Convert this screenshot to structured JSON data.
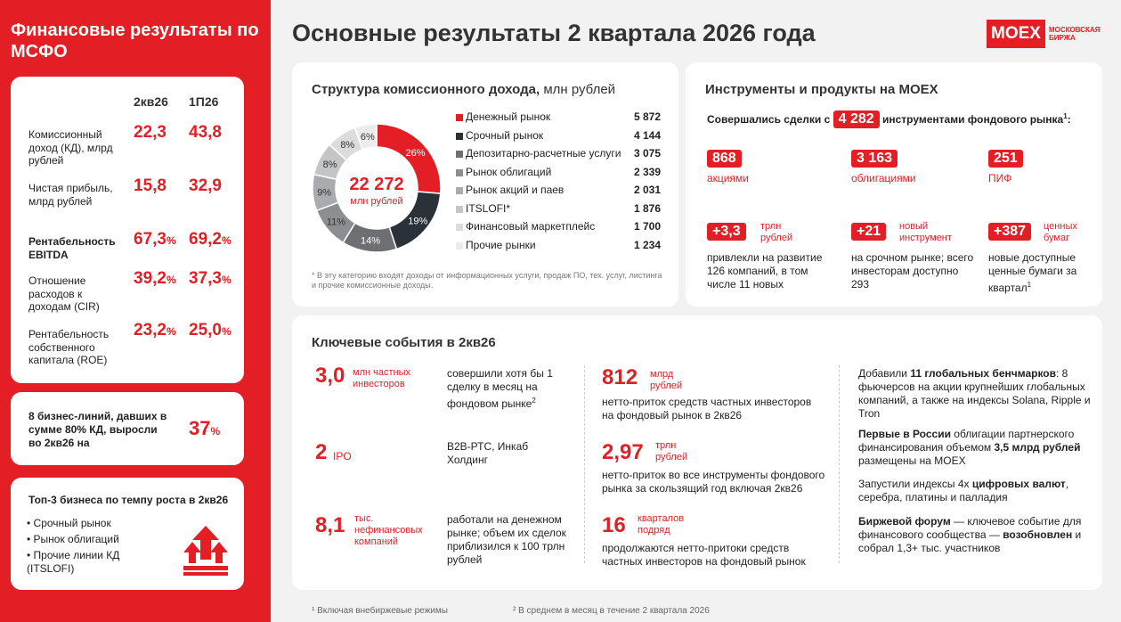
{
  "sidebar": {
    "title": "Финансовые результаты по МСФО",
    "col_q": "2кв26",
    "col_h": "1П26",
    "rows": [
      {
        "label": "Комиссионный доход (КД), млрд рублей",
        "q": "22,3",
        "h": "43,8",
        "unit": ""
      },
      {
        "label": "Чистая прибыль, млрд рублей",
        "q": "15,8",
        "h": "32,9",
        "unit": ""
      },
      {
        "label": "Рентабельность EBITDA",
        "q": "67,3",
        "h": "69,2",
        "unit": "%"
      },
      {
        "label": "Отношение расходов к доходам (CIR)",
        "q": "39,2",
        "h": "37,3",
        "unit": "%"
      },
      {
        "label": "Рентабельность собственного капитала (ROE)",
        "q": "23,2",
        "h": "25,0",
        "unit": "%"
      }
    ],
    "business_lines": {
      "text": "8 бизнес-линий, давших в сумме 80% КД, выросли во 2кв26 на",
      "value": "37",
      "unit": "%"
    },
    "top3": {
      "title": "Топ-3 бизнеса по темпу роста в 2кв26",
      "items": [
        "Срочный рынок",
        "Рынок облигаций",
        "Прочие линии КД (ITSLOFI)"
      ]
    }
  },
  "header": {
    "title": "Основные результаты 2 квартала 2026 года",
    "logo_text": "MOEX",
    "logo_sub1": "МОСКОВСКАЯ",
    "logo_sub2": "БИРЖА"
  },
  "structure": {
    "title": "Структура комиссионного дохода,",
    "title_unit": "млн рублей",
    "total": "22 272",
    "total_unit": "млн рублей",
    "footnote": "* В эту категорию входят доходы от информационных услуги, продаж ПО, тех. услуг, листинга и прочие комиссионные доходы."
  },
  "chart_data": {
    "type": "pie",
    "title": "Структура комиссионного дохода, млн рублей",
    "categories": [
      "Денежный рынок",
      "Срочный рынок",
      "Депозитарно-расчетные услуги",
      "Рынок облигаций",
      "Рынок акций и паев",
      "ITSLOFI*",
      "Финансовый маркетплейс",
      "Прочие рынки"
    ],
    "values": [
      5872,
      4144,
      3075,
      2339,
      2031,
      1876,
      1700,
      1234
    ],
    "values_display": [
      "5 872",
      "4 144",
      "3 075",
      "2 339",
      "2 031",
      "1 876",
      "1 700",
      "1 234"
    ],
    "percent_labels": [
      "26%",
      "19%",
      "14%",
      "11%",
      "9%",
      "8%",
      "8%",
      "6%"
    ],
    "colors": [
      "#e31e24",
      "#2b3138",
      "#6d6f73",
      "#8c8e92",
      "#a9abae",
      "#c4c5c7",
      "#dcdcdd",
      "#ececed"
    ],
    "legend": "right"
  },
  "instruments": {
    "title": "Инструменты и продукты на MOEX",
    "deals_pre": "Совершались сделки с",
    "deals_value": "4 282",
    "deals_post": "инструментами фондового рынка",
    "deals_sup": "1",
    "deals_colon": ":",
    "stats": [
      {
        "value": "868",
        "label": "акциями"
      },
      {
        "value": "3 163",
        "label": "облигациями"
      },
      {
        "value": "251",
        "label": "ПИФ"
      }
    ],
    "growth": [
      {
        "value": "+3,3",
        "unit": "трлн рублей",
        "desc": "привлекли на развитие 126 компаний, в том числе 11 новых"
      },
      {
        "value": "+21",
        "unit": "новый инструмент",
        "desc": "на срочном рынке; всего инвесторам доступно 293"
      },
      {
        "value": "+387",
        "unit": "ценных бумаг",
        "desc": "новые доступные ценные бумаги за квартал",
        "sup": "1"
      }
    ]
  },
  "events": {
    "title": "Ключевые события в 2кв26",
    "col1": [
      {
        "value": "3,0",
        "unit": "млн частных инвесторов",
        "desc": "совершили хотя бы 1 сделку в месяц на фондовом рынке",
        "sup": "2"
      },
      {
        "value": "2",
        "unit": "IPO",
        "desc": "B2B-РТС, Инкаб Холдинг"
      },
      {
        "value": "8,1",
        "unit": "тыс. нефинансовых компаний",
        "desc": "работали на денежном рынке; объем их сделок приблизился к 100 трлн рублей"
      }
    ],
    "col2": [
      {
        "value": "812",
        "unit": "млрд рублей",
        "desc": "нетто-приток средств частных инвесторов на фондовый рынок в 2кв26"
      },
      {
        "value": "2,97",
        "unit": "трлн рублей",
        "desc": "нетто-приток во все инструменты фондового рынка за скользящий год включая 2кв26"
      },
      {
        "value": "16",
        "unit": "кварталов подряд",
        "desc": "продолжаются нетто-притоки средств частных инвесторов на фондовый рынок"
      }
    ],
    "col3": {
      "p1_a": "Добавили ",
      "p1_b": "11 глобальных бенчмарков",
      "p1_c": ": 8 фьючерсов на акции крупнейших глобальных компаний, а также на индексы Solana, Ripple и Tron",
      "p2_a": "Первые в России",
      "p2_b": " облигации партнерского финансирования объемом ",
      "p2_c": "3,5 млрд рублей",
      "p2_d": " размещены на MOEX",
      "p3_a": "Запустили индексы 4х ",
      "p3_b": "цифровых валют",
      "p3_c": ", серебра, платины и палладия",
      "p4_a": "Биржевой форум",
      "p4_b": " — ключевое событие для финансового сообщества — ",
      "p4_c": "возобновлен",
      "p4_d": " и собрал 1,3+ тыс. участников"
    }
  },
  "footnotes": {
    "f1": "¹ Включая внебиржевые режимы",
    "f2": "² В среднем в месяц в течение 2 квартала 2026"
  }
}
